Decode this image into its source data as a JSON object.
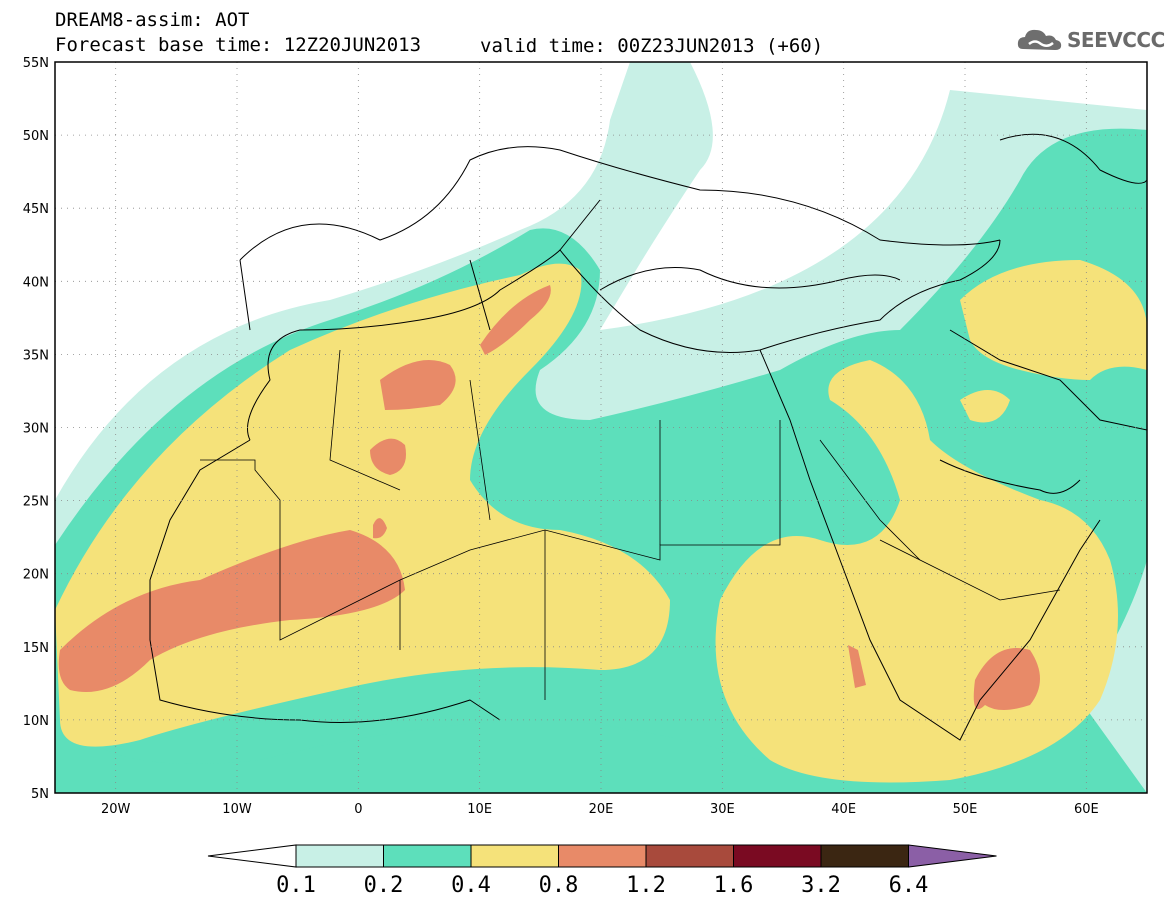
{
  "header": {
    "line1": "DREAM8-assim: AOT",
    "line2": "Forecast base time: 12Z20JUN2013",
    "valid": "valid time: 00Z23JUN2013 (+60)",
    "logo_text": "SEEVCCC"
  },
  "map": {
    "lat_labels": [
      "55N",
      "50N",
      "45N",
      "40N",
      "35N",
      "30N",
      "25N",
      "20N",
      "15N",
      "10N",
      "5N"
    ],
    "lon_labels": [
      "20W",
      "10W",
      "0",
      "10E",
      "20E",
      "30E",
      "40E",
      "50E",
      "60E"
    ],
    "lat_range": [
      5,
      55
    ],
    "lon_range": [
      -25,
      65
    ],
    "grid": "dotted"
  },
  "colorbar": {
    "labels": [
      "0.1",
      "0.2",
      "0.4",
      "0.8",
      "1.2",
      "1.6",
      "3.2",
      "6.4"
    ],
    "colors": [
      "#ffffff",
      "#c8f0e6",
      "#5ddfbb",
      "#f5e27a",
      "#e88a68",
      "#a84a3c",
      "#7a0a22",
      "#3b2612",
      "#8b5fa6"
    ]
  }
}
